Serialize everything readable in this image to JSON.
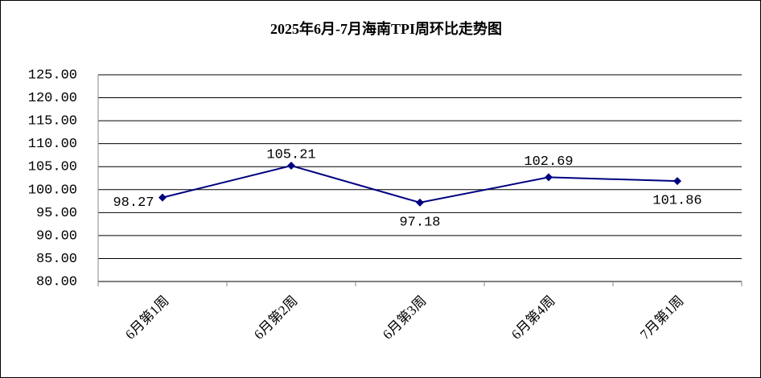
{
  "chart_data": {
    "type": "line",
    "title": "2025年6月-7月海南TPI周环比走势图",
    "categories": [
      "6月第1周",
      "6月第2周",
      "6月第3周",
      "6月第4周",
      "7月第1周"
    ],
    "series": [
      {
        "name": "TPI周环比",
        "color": "#000080",
        "values": [
          98.27,
          105.21,
          97.18,
          102.69,
          101.86
        ]
      }
    ],
    "ylim": [
      80,
      125
    ],
    "yticks": [
      {
        "value": 80,
        "label": "80.00"
      },
      {
        "value": 85,
        "label": "85.00"
      },
      {
        "value": 90,
        "label": "90.00"
      },
      {
        "value": 95,
        "label": "95.00"
      },
      {
        "value": 100,
        "label": "100.00"
      },
      {
        "value": 105,
        "label": "105.00"
      },
      {
        "value": 110,
        "label": "110.00"
      },
      {
        "value": 115,
        "label": "115.00"
      },
      {
        "value": 120,
        "label": "120.00"
      },
      {
        "value": 125,
        "label": "125.00"
      }
    ],
    "grid": true
  }
}
